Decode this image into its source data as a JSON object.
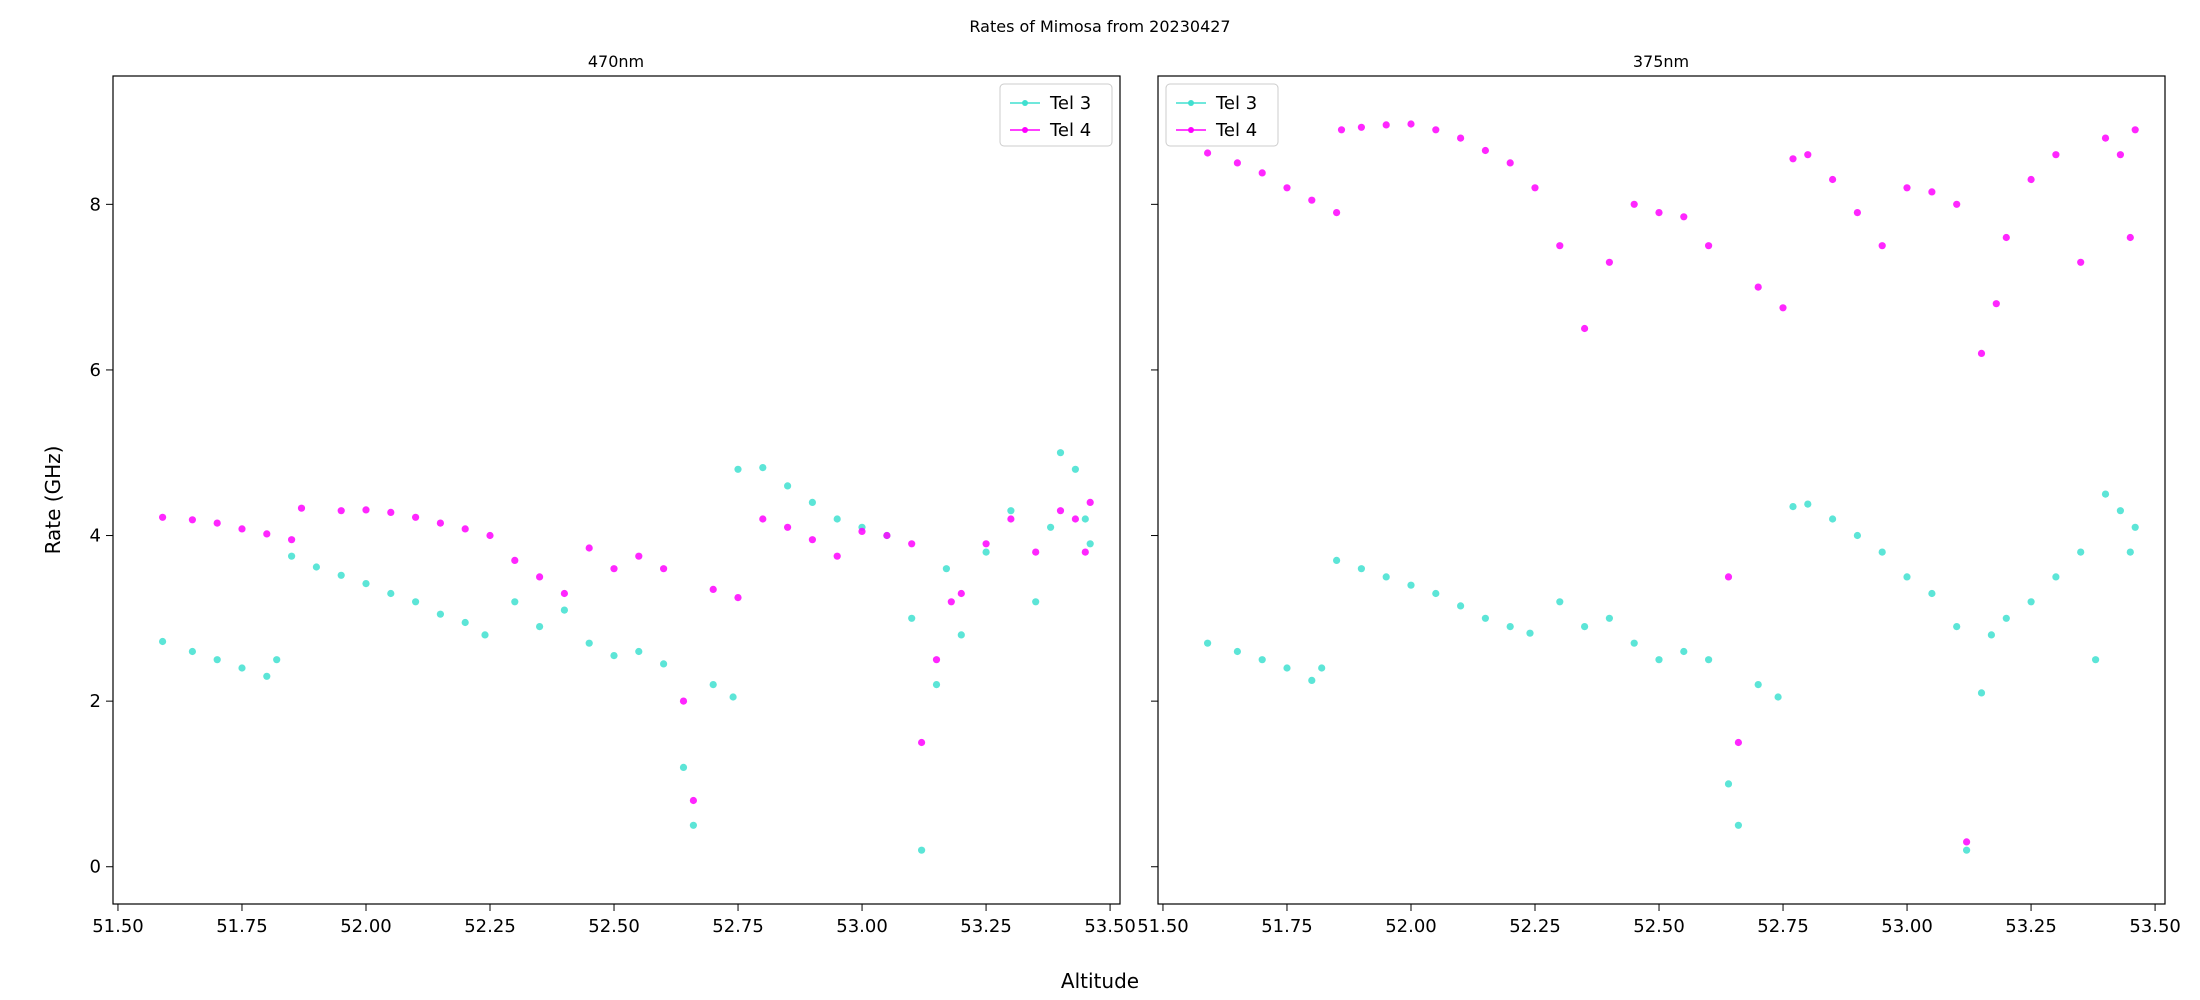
{
  "figure": {
    "suptitle": "Rates of Mimosa from 20230427",
    "xlabel": "Altitude",
    "ylabel": "Rate (GHz)"
  },
  "colors": {
    "Tel 3": "#40e0d0",
    "Tel 4": "#ff00ff"
  },
  "chart_data": [
    {
      "type": "scatter",
      "title": "470nm",
      "xlim": [
        51.49,
        53.52
      ],
      "ylim": [
        -0.45,
        9.55
      ],
      "xticks": [
        "51.50",
        "51.75",
        "52.00",
        "52.25",
        "52.50",
        "52.75",
        "53.00",
        "53.25",
        "53.50"
      ],
      "xtick_values": [
        51.5,
        51.75,
        52.0,
        52.25,
        52.5,
        52.75,
        53.0,
        53.25,
        53.5
      ],
      "yticks": [
        "0",
        "2",
        "4",
        "6",
        "8"
      ],
      "ytick_values": [
        0,
        2,
        4,
        6,
        8
      ],
      "legend": "top-right",
      "series": [
        {
          "name": "Tel 3",
          "x": [
            51.59,
            51.65,
            51.7,
            51.75,
            51.8,
            51.82,
            51.85,
            51.9,
            51.95,
            52.0,
            52.05,
            52.1,
            52.15,
            52.2,
            52.24,
            52.3,
            52.35,
            52.4,
            52.45,
            52.5,
            52.55,
            52.6,
            52.64,
            52.66,
            52.7,
            52.74,
            52.75,
            52.8,
            52.85,
            52.9,
            52.95,
            53.0,
            53.05,
            53.1,
            53.12,
            53.15,
            53.17,
            53.2,
            53.25,
            53.3,
            53.35,
            53.38,
            53.4,
            53.43,
            53.45,
            53.46
          ],
          "y": [
            2.72,
            2.6,
            2.5,
            2.4,
            2.3,
            2.5,
            3.75,
            3.62,
            3.52,
            3.42,
            3.3,
            3.2,
            3.05,
            2.95,
            2.8,
            3.2,
            2.9,
            3.1,
            2.7,
            2.55,
            2.6,
            2.45,
            1.2,
            0.5,
            2.2,
            2.05,
            4.8,
            4.82,
            4.6,
            4.4,
            4.2,
            4.1,
            4.0,
            3.0,
            0.2,
            2.2,
            3.6,
            2.8,
            3.8,
            4.3,
            3.2,
            4.1,
            5.0,
            4.8,
            4.2,
            3.9
          ]
        },
        {
          "name": "Tel 4",
          "x": [
            51.59,
            51.65,
            51.7,
            51.75,
            51.8,
            51.85,
            51.87,
            51.95,
            52.0,
            52.05,
            52.1,
            52.15,
            52.2,
            52.25,
            52.3,
            52.35,
            52.4,
            52.45,
            52.5,
            52.55,
            52.6,
            52.64,
            52.66,
            52.7,
            52.75,
            52.8,
            52.85,
            52.9,
            52.95,
            53.0,
            53.05,
            53.1,
            53.12,
            53.15,
            53.18,
            53.2,
            53.25,
            53.3,
            53.35,
            53.4,
            53.43,
            53.45,
            53.46
          ],
          "y": [
            4.22,
            4.19,
            4.15,
            4.08,
            4.02,
            3.95,
            4.33,
            4.3,
            4.31,
            4.28,
            4.22,
            4.15,
            4.08,
            4.0,
            3.7,
            3.5,
            3.3,
            3.85,
            3.6,
            3.75,
            3.6,
            2.0,
            0.8,
            3.35,
            3.25,
            4.2,
            4.1,
            3.95,
            3.75,
            4.05,
            4.0,
            3.9,
            1.5,
            2.5,
            3.2,
            3.3,
            3.9,
            4.2,
            3.8,
            4.3,
            4.2,
            3.8,
            4.4
          ]
        }
      ]
    },
    {
      "type": "scatter",
      "title": "375nm",
      "xlim": [
        51.49,
        53.52
      ],
      "ylim": [
        -0.45,
        9.55
      ],
      "xticks": [
        "51.50",
        "51.75",
        "52.00",
        "52.25",
        "52.50",
        "52.75",
        "53.00",
        "53.25",
        "53.50"
      ],
      "xtick_values": [
        51.5,
        51.75,
        52.0,
        52.25,
        52.5,
        52.75,
        53.0,
        53.25,
        53.5
      ],
      "yticks": [],
      "ytick_values": [
        0,
        2,
        4,
        6,
        8
      ],
      "legend": "top-left",
      "series": [
        {
          "name": "Tel 3",
          "x": [
            51.59,
            51.65,
            51.7,
            51.75,
            51.8,
            51.82,
            51.85,
            51.9,
            51.95,
            52.0,
            52.05,
            52.1,
            52.15,
            52.2,
            52.24,
            52.3,
            52.35,
            52.4,
            52.45,
            52.5,
            52.55,
            52.6,
            52.64,
            52.66,
            52.7,
            52.74,
            52.77,
            52.8,
            52.85,
            52.9,
            52.95,
            53.0,
            53.05,
            53.1,
            53.12,
            53.15,
            53.17,
            53.2,
            53.25,
            53.3,
            53.35,
            53.38,
            53.4,
            53.43,
            53.45,
            53.46
          ],
          "y": [
            2.7,
            2.6,
            2.5,
            2.4,
            2.25,
            2.4,
            3.7,
            3.6,
            3.5,
            3.4,
            3.3,
            3.15,
            3.0,
            2.9,
            2.82,
            3.2,
            2.9,
            3.0,
            2.7,
            2.5,
            2.6,
            2.5,
            1.0,
            0.5,
            2.2,
            2.05,
            4.35,
            4.38,
            4.2,
            4.0,
            3.8,
            3.5,
            3.3,
            2.9,
            0.2,
            2.1,
            2.8,
            3.0,
            3.2,
            3.5,
            3.8,
            2.5,
            4.5,
            4.3,
            3.8,
            4.1
          ]
        },
        {
          "name": "Tel 4",
          "x": [
            51.59,
            51.65,
            51.7,
            51.75,
            51.8,
            51.85,
            51.86,
            51.9,
            51.95,
            52.0,
            52.05,
            52.1,
            52.15,
            52.2,
            52.25,
            52.3,
            52.35,
            52.4,
            52.45,
            52.5,
            52.55,
            52.6,
            52.64,
            52.66,
            52.7,
            52.75,
            52.77,
            52.8,
            52.85,
            52.9,
            52.95,
            53.0,
            53.05,
            53.1,
            53.12,
            53.15,
            53.18,
            53.2,
            53.25,
            53.3,
            53.35,
            53.4,
            53.43,
            53.45,
            53.46
          ],
          "y": [
            8.62,
            8.5,
            8.38,
            8.2,
            8.05,
            7.9,
            8.9,
            8.93,
            8.96,
            8.97,
            8.9,
            8.8,
            8.65,
            8.5,
            8.2,
            7.5,
            6.5,
            7.3,
            8.0,
            7.9,
            7.85,
            7.5,
            3.5,
            1.5,
            7.0,
            6.75,
            8.55,
            8.6,
            8.3,
            7.9,
            7.5,
            8.2,
            8.15,
            8.0,
            0.3,
            6.2,
            6.8,
            7.6,
            8.3,
            8.6,
            7.3,
            8.8,
            8.6,
            7.6,
            8.9
          ]
        }
      ]
    }
  ]
}
